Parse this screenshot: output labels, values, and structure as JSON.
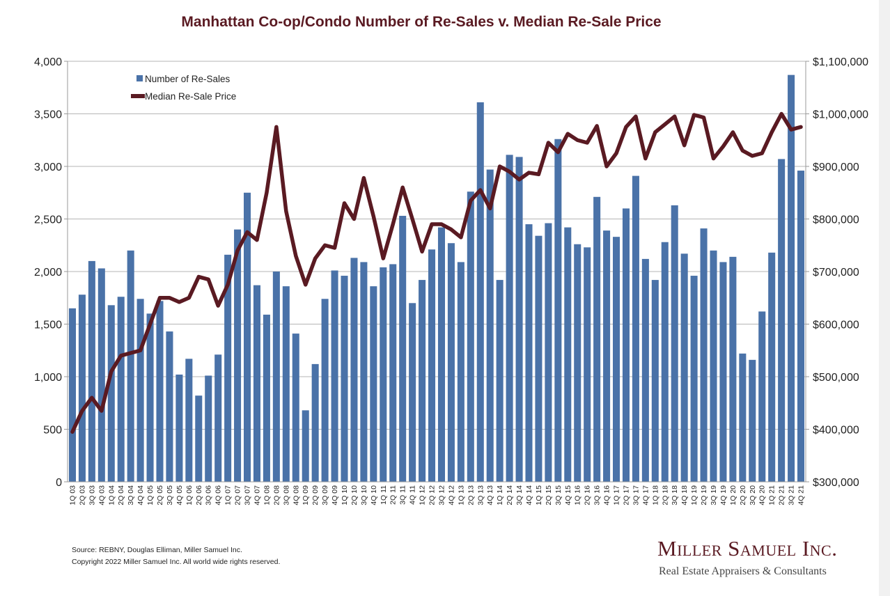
{
  "chart_data": {
    "type": "bar",
    "title": "Manhattan Co-op/Condo Number of Re-Sales v. Median Re-Sale Price",
    "categories": [
      "1Q 03",
      "2Q 03",
      "3Q 03",
      "4Q 03",
      "1Q 04",
      "2Q 04",
      "3Q 04",
      "4Q 04",
      "1Q 05",
      "2Q 05",
      "3Q 05",
      "4Q 05",
      "1Q 06",
      "2Q 06",
      "3Q 06",
      "4Q 06",
      "1Q 07",
      "2Q 07",
      "3Q 07",
      "4Q 07",
      "1Q 08",
      "2Q 08",
      "3Q 08",
      "4Q 08",
      "1Q 09",
      "2Q 09",
      "3Q 09",
      "4Q 09",
      "1Q 10",
      "2Q 10",
      "3Q 10",
      "4Q 10",
      "1Q 11",
      "2Q 11",
      "3Q 11",
      "4Q 11",
      "1Q 12",
      "2Q 12",
      "3Q 12",
      "4Q 12",
      "1Q 13",
      "2Q 13",
      "3Q 13",
      "4Q 13",
      "1Q 14",
      "2Q 14",
      "3Q 14",
      "4Q 14",
      "1Q 15",
      "2Q 15",
      "3Q 15",
      "4Q 15",
      "1Q 16",
      "2Q 16",
      "3Q 16",
      "4Q 16",
      "1Q 17",
      "2Q 17",
      "3Q 17",
      "4Q 17",
      "1Q 18",
      "2Q 18",
      "3Q 18",
      "4Q 18",
      "1Q 19",
      "2Q 19",
      "3Q 19",
      "4Q 19",
      "1Q 20",
      "2Q 20",
      "3Q 20",
      "4Q 20",
      "1Q 21",
      "2Q 21",
      "3Q 21",
      "4Q 21"
    ],
    "series": [
      {
        "name": "Number of Re-Sales",
        "type": "bar",
        "axis": "left",
        "color": "#4a72a8",
        "values": [
          1650,
          1780,
          2100,
          2030,
          1680,
          1760,
          2200,
          1740,
          1600,
          1720,
          1430,
          1020,
          1170,
          820,
          1010,
          1210,
          2160,
          2400,
          2750,
          1870,
          1590,
          2000,
          1860,
          1410,
          680,
          1120,
          1740,
          2010,
          1960,
          2130,
          2090,
          1860,
          2040,
          2070,
          2530,
          1700,
          1920,
          2210,
          2420,
          2270,
          2090,
          2760,
          3610,
          2970,
          1920,
          3110,
          3090,
          2450,
          2340,
          2460,
          3260,
          2420,
          2260,
          2230,
          2710,
          2390,
          2330,
          2600,
          2910,
          2120,
          1920,
          2280,
          2630,
          2170,
          1960,
          2410,
          2200,
          2090,
          2140,
          1220,
          1160,
          1620,
          2180,
          3070,
          3870,
          2960
        ]
      },
      {
        "name": "Median Re-Sale Price",
        "type": "line",
        "axis": "right",
        "color": "#5a1a22",
        "values": [
          395000,
          435000,
          460000,
          435000,
          510000,
          540000,
          545000,
          550000,
          600000,
          650000,
          650000,
          642000,
          650000,
          690000,
          685000,
          635000,
          675000,
          740000,
          775000,
          760000,
          850000,
          975000,
          815000,
          730000,
          675000,
          725000,
          750000,
          745000,
          830000,
          800000,
          878000,
          805000,
          725000,
          790000,
          860000,
          800000,
          738000,
          790000,
          790000,
          780000,
          765000,
          835000,
          855000,
          820000,
          900000,
          890000,
          875000,
          888000,
          885000,
          945000,
          927000,
          962000,
          950000,
          945000,
          977000,
          900000,
          925000,
          975000,
          995000,
          915000,
          965000,
          980000,
          995000,
          940000,
          998000,
          993000,
          915000,
          938000,
          965000,
          930000,
          920000,
          925000,
          965000,
          1000000,
          970000,
          975000
        ]
      }
    ],
    "yaxis_left": {
      "min": 0,
      "max": 4000,
      "ticks": [
        0,
        500,
        1000,
        1500,
        2000,
        2500,
        3000,
        3500,
        4000
      ],
      "tick_labels": [
        "0",
        "500",
        "1,000",
        "1,500",
        "2,000",
        "2,500",
        "3,000",
        "3,500",
        "4,000"
      ]
    },
    "yaxis_right": {
      "min": 300000,
      "max": 1100000,
      "ticks": [
        300000,
        400000,
        500000,
        600000,
        700000,
        800000,
        900000,
        1000000,
        1100000
      ],
      "tick_labels": [
        "$300,000",
        "$400,000",
        "$500,000",
        "$600,000",
        "$700,000",
        "$800,000",
        "$900,000",
        "$1,000,000",
        "$1,100,000"
      ]
    },
    "legend": {
      "position": "top-left",
      "entries": [
        "Number of Re-Sales",
        "Median Re-Sale Price"
      ]
    },
    "grid": true
  },
  "footer": {
    "source": "Source: REBNY, Douglas Elliman, Miller Samuel Inc.",
    "copyright": "Copyright 2022 Miller Samuel Inc.  All world wide rights reserved."
  },
  "brand": {
    "name": "Miller Samuel Inc.",
    "tagline": "Real Estate Appraisers & Consultants"
  }
}
